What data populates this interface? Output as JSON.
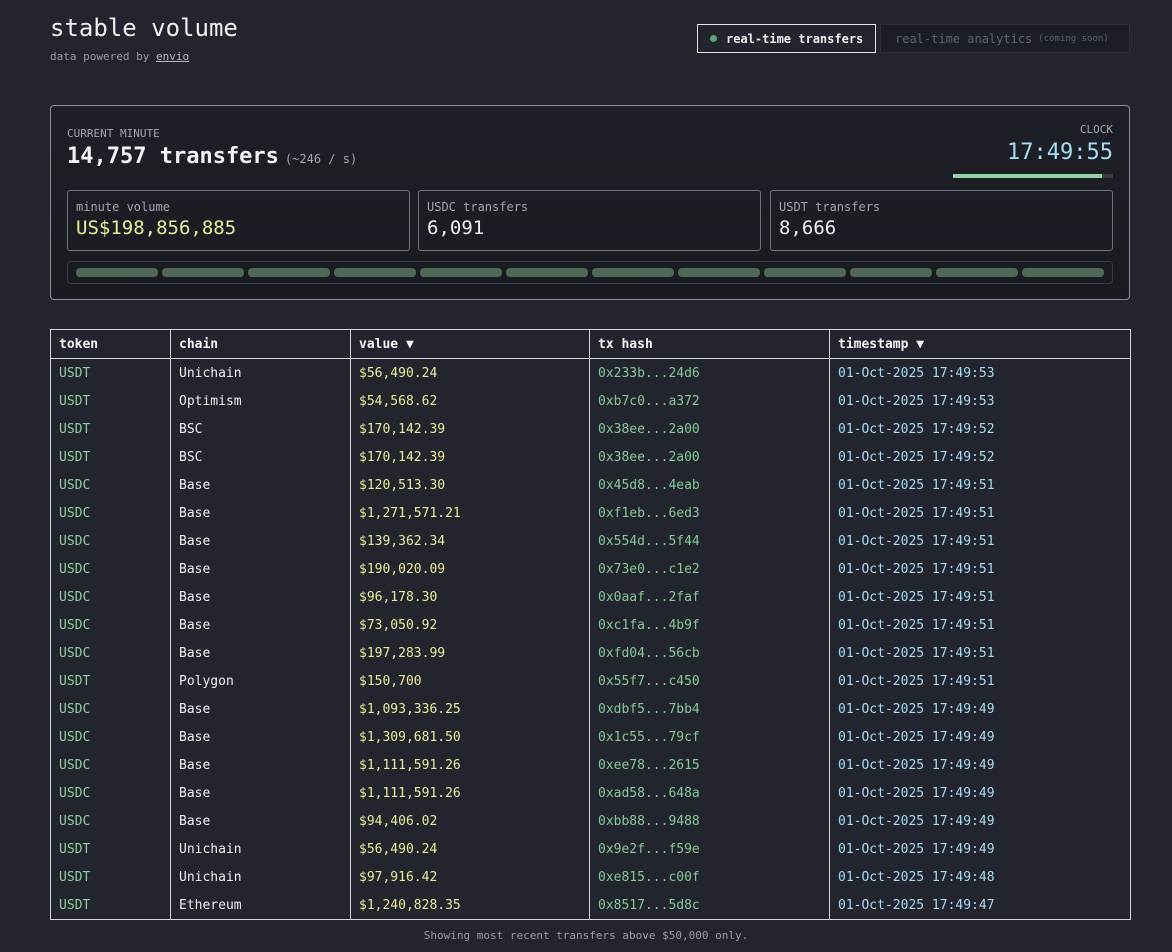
{
  "header": {
    "title": "stable volume",
    "subtitle": "data powered by",
    "link": "envio"
  },
  "tabs": {
    "active": "real-time transfers",
    "inactive": "real-time analytics",
    "inactive_note": "(coming soon)"
  },
  "panel": {
    "label": "CURRENT MINUTE",
    "count": "14,757 transfers",
    "rate": "(~246 / s)",
    "clock_label": "CLOCK",
    "clock": "17:49:55",
    "stats": [
      {
        "label": "minute volume",
        "value": "US$198,856,885"
      },
      {
        "label": "USDC transfers",
        "value": "6,091"
      },
      {
        "label": "USDT transfers",
        "value": "8,666"
      }
    ]
  },
  "table": {
    "columns": [
      "token",
      "chain",
      "value ▼",
      "tx hash",
      "timestamp ▼"
    ],
    "rows": [
      [
        "USDT",
        "Unichain",
        "$56,490.24",
        "0x233b...24d6",
        "01-Oct-2025 17:49:53"
      ],
      [
        "USDT",
        "Optimism",
        "$54,568.62",
        "0xb7c0...a372",
        "01-Oct-2025 17:49:53"
      ],
      [
        "USDT",
        "BSC",
        "$170,142.39",
        "0x38ee...2a00",
        "01-Oct-2025 17:49:52"
      ],
      [
        "USDT",
        "BSC",
        "$170,142.39",
        "0x38ee...2a00",
        "01-Oct-2025 17:49:52"
      ],
      [
        "USDC",
        "Base",
        "$120,513.30",
        "0x45d8...4eab",
        "01-Oct-2025 17:49:51"
      ],
      [
        "USDC",
        "Base",
        "$1,271,571.21",
        "0xf1eb...6ed3",
        "01-Oct-2025 17:49:51"
      ],
      [
        "USDC",
        "Base",
        "$139,362.34",
        "0x554d...5f44",
        "01-Oct-2025 17:49:51"
      ],
      [
        "USDC",
        "Base",
        "$190,020.09",
        "0x73e0...c1e2",
        "01-Oct-2025 17:49:51"
      ],
      [
        "USDC",
        "Base",
        "$96,178.30",
        "0x0aaf...2faf",
        "01-Oct-2025 17:49:51"
      ],
      [
        "USDC",
        "Base",
        "$73,050.92",
        "0xc1fa...4b9f",
        "01-Oct-2025 17:49:51"
      ],
      [
        "USDC",
        "Base",
        "$197,283.99",
        "0xfd04...56cb",
        "01-Oct-2025 17:49:51"
      ],
      [
        "USDT",
        "Polygon",
        "$150,700",
        "0x55f7...c450",
        "01-Oct-2025 17:49:51"
      ],
      [
        "USDC",
        "Base",
        "$1,093,336.25",
        "0xdbf5...7bb4",
        "01-Oct-2025 17:49:49"
      ],
      [
        "USDC",
        "Base",
        "$1,309,681.50",
        "0x1c55...79cf",
        "01-Oct-2025 17:49:49"
      ],
      [
        "USDC",
        "Base",
        "$1,111,591.26",
        "0xee78...2615",
        "01-Oct-2025 17:49:49"
      ],
      [
        "USDC",
        "Base",
        "$1,111,591.26",
        "0xad58...648a",
        "01-Oct-2025 17:49:49"
      ],
      [
        "USDC",
        "Base",
        "$94,406.02",
        "0xbb88...9488",
        "01-Oct-2025 17:49:49"
      ],
      [
        "USDT",
        "Unichain",
        "$56,490.24",
        "0x9e2f...f59e",
        "01-Oct-2025 17:49:49"
      ],
      [
        "USDT",
        "Unichain",
        "$97,916.42",
        "0xe815...c00f",
        "01-Oct-2025 17:49:48"
      ],
      [
        "USDT",
        "Ethereum",
        "$1,240,828.35",
        "0x8517...5d8c",
        "01-Oct-2025 17:49:47"
      ]
    ]
  },
  "footer": "Showing most recent transfers above $50,000 only."
}
